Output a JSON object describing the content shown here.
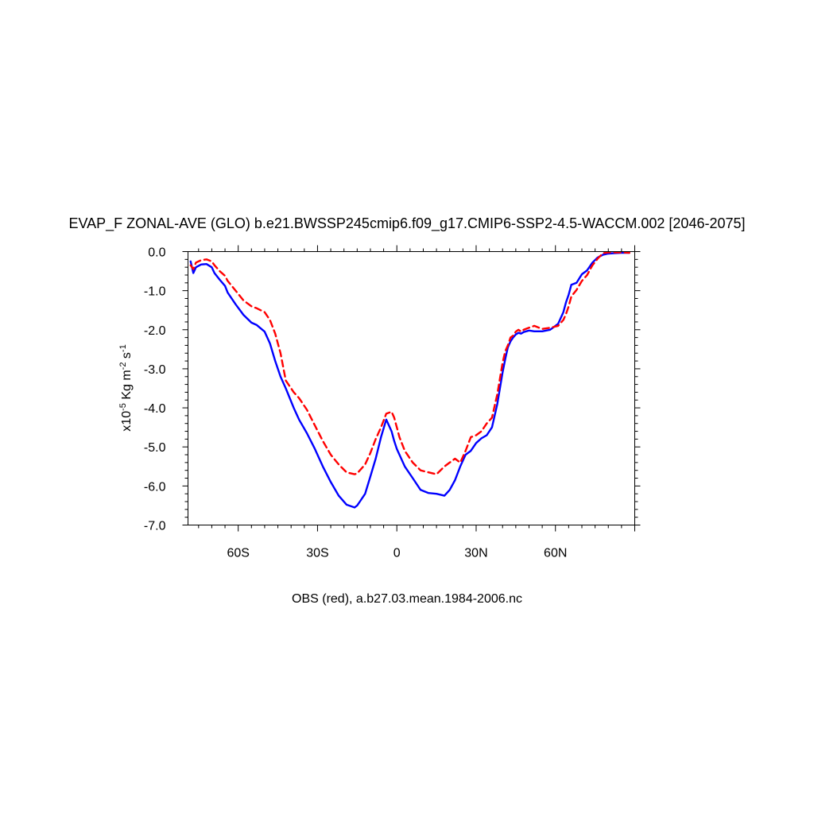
{
  "chart_data": {
    "type": "line",
    "title": "EVAP_F ZONAL-AVE (GLO) b.e21.BWSSP245cmip6.f09_g17.CMIP6-SSP2-4.5-WACCM.002 [2046-2075]",
    "ylabel": {
      "prefix": "x10",
      "exp": "-5",
      "unit1": " Kg m",
      "exp2": "-2",
      "unit2": " s",
      "exp3": "-1"
    },
    "footer": "OBS (red), a.b27.03.mean.1984-2006.nc",
    "xlim": [
      -79,
      90
    ],
    "ylim": [
      -7.0,
      0.0
    ],
    "x_ticks": [
      {
        "value": -60,
        "label": "60S"
      },
      {
        "value": -30,
        "label": "30S"
      },
      {
        "value": 0,
        "label": "0"
      },
      {
        "value": 30,
        "label": "30N"
      },
      {
        "value": 60,
        "label": "60N"
      }
    ],
    "y_ticks": [
      {
        "value": 0,
        "label": "0.0"
      },
      {
        "value": -1,
        "label": "-1.0"
      },
      {
        "value": -2,
        "label": "-2.0"
      },
      {
        "value": -3,
        "label": "-3.0"
      },
      {
        "value": -4,
        "label": "-4.0"
      },
      {
        "value": -5,
        "label": "-5.0"
      },
      {
        "value": -6,
        "label": "-6.0"
      },
      {
        "value": -7,
        "label": "-7.0"
      }
    ],
    "grid": false,
    "series": [
      {
        "color": "#0000ff",
        "style": "solid",
        "x": [
          -78,
          -77,
          -76,
          -74,
          -72,
          -70,
          -69,
          -67,
          -65,
          -64,
          -61,
          -58,
          -55,
          -53,
          -50,
          -48,
          -46,
          -44,
          -42,
          -39,
          -37,
          -34,
          -31,
          -28,
          -25,
          -22,
          -19,
          -16,
          -15,
          -14,
          -12,
          -10,
          -8,
          -6,
          -4,
          -2,
          -1,
          0,
          1,
          3,
          6,
          9,
          12,
          15,
          18,
          20,
          22,
          24,
          26,
          28,
          30,
          32,
          34,
          36,
          38,
          40,
          41,
          42,
          43,
          44,
          45,
          46,
          47,
          48,
          50,
          52,
          55,
          58,
          61,
          63,
          64,
          65,
          66,
          68,
          70,
          72,
          74,
          76,
          78,
          80,
          82,
          85,
          88
        ],
        "y": [
          -0.25,
          -0.55,
          -0.4,
          -0.33,
          -0.32,
          -0.4,
          -0.55,
          -0.72,
          -0.88,
          -1.05,
          -1.35,
          -1.62,
          -1.82,
          -1.88,
          -2.05,
          -2.35,
          -2.8,
          -3.2,
          -3.5,
          -4.0,
          -4.3,
          -4.65,
          -5.05,
          -5.5,
          -5.9,
          -6.25,
          -6.48,
          -6.55,
          -6.5,
          -6.4,
          -6.2,
          -5.75,
          -5.3,
          -4.75,
          -4.3,
          -4.6,
          -4.85,
          -5.05,
          -5.2,
          -5.5,
          -5.8,
          -6.1,
          -6.18,
          -6.2,
          -6.25,
          -6.1,
          -5.85,
          -5.5,
          -5.2,
          -5.1,
          -4.9,
          -4.78,
          -4.7,
          -4.5,
          -3.9,
          -3.1,
          -2.75,
          -2.45,
          -2.3,
          -2.2,
          -2.12,
          -2.08,
          -2.1,
          -2.06,
          -2.02,
          -2.04,
          -2.04,
          -2.0,
          -1.85,
          -1.55,
          -1.3,
          -1.1,
          -0.85,
          -0.8,
          -0.58,
          -0.48,
          -0.28,
          -0.15,
          -0.08,
          -0.05,
          -0.04,
          -0.03,
          -0.03
        ]
      },
      {
        "color": "#ff0000",
        "style": "dashed",
        "x": [
          -78,
          -77,
          -76,
          -74,
          -72,
          -70,
          -69,
          -67,
          -65,
          -64,
          -61,
          -58,
          -55,
          -53,
          -50,
          -48,
          -46,
          -44,
          -42,
          -39,
          -37,
          -34,
          -31,
          -28,
          -25,
          -22,
          -19,
          -16,
          -15,
          -14,
          -12,
          -10,
          -8,
          -6,
          -4,
          -2,
          -1,
          0,
          1,
          3,
          6,
          9,
          12,
          15,
          18,
          20,
          22,
          24,
          26,
          28,
          30,
          32,
          34,
          36,
          38,
          40,
          41,
          42,
          43,
          44,
          45,
          46,
          47,
          48,
          50,
          52,
          55,
          58,
          61,
          63,
          64,
          65,
          66,
          68,
          70,
          72,
          74,
          76,
          78,
          80,
          82,
          85,
          88
        ],
        "y": [
          -0.35,
          -0.45,
          -0.28,
          -0.22,
          -0.2,
          -0.25,
          -0.35,
          -0.5,
          -0.62,
          -0.75,
          -1.0,
          -1.25,
          -1.4,
          -1.45,
          -1.55,
          -1.75,
          -2.1,
          -2.6,
          -3.3,
          -3.6,
          -3.75,
          -4.05,
          -4.45,
          -4.85,
          -5.2,
          -5.45,
          -5.65,
          -5.7,
          -5.68,
          -5.6,
          -5.45,
          -5.15,
          -4.8,
          -4.5,
          -4.15,
          -4.1,
          -4.25,
          -4.5,
          -4.75,
          -5.1,
          -5.4,
          -5.6,
          -5.65,
          -5.7,
          -5.5,
          -5.4,
          -5.3,
          -5.4,
          -5.1,
          -4.75,
          -4.7,
          -4.6,
          -4.4,
          -4.25,
          -3.65,
          -2.85,
          -2.55,
          -2.4,
          -2.2,
          -2.15,
          -2.05,
          -2.0,
          -2.05,
          -2.0,
          -1.95,
          -1.9,
          -1.98,
          -1.95,
          -1.9,
          -1.75,
          -1.6,
          -1.4,
          -1.15,
          -0.98,
          -0.75,
          -0.6,
          -0.35,
          -0.18,
          -0.04,
          -0.02,
          -0.02,
          -0.02,
          -0.03
        ]
      }
    ]
  }
}
